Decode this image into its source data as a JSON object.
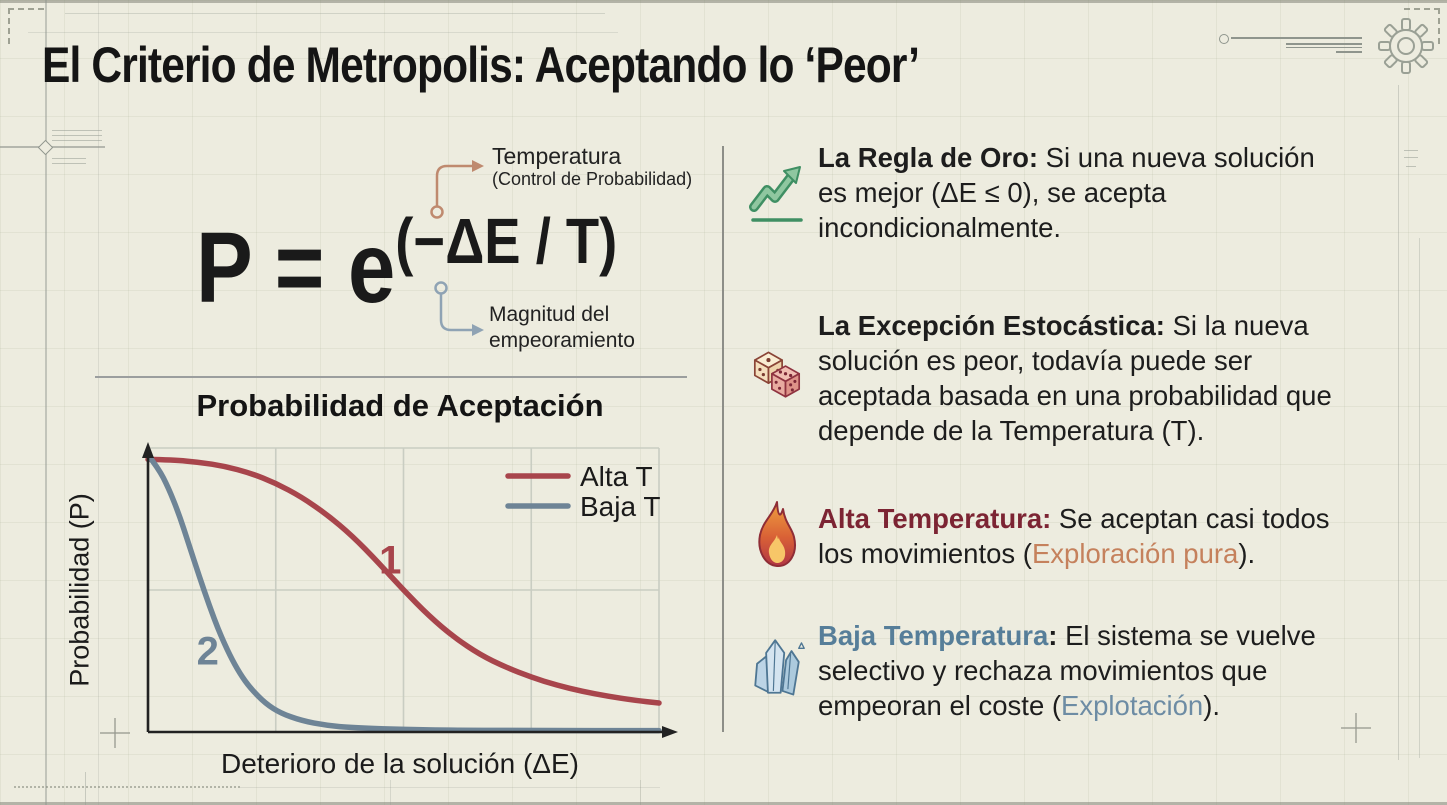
{
  "page": {
    "title": "El Criterio de Metropolis: Aceptando lo ‘Peor’"
  },
  "formula": {
    "base": "P = e",
    "exponent": "(−ΔE / T)",
    "temperature_note": {
      "title": "Temperatura",
      "subtitle": "(Control de Probabilidad)",
      "arrow_color": "#bf8a6f"
    },
    "magnitude_note": {
      "line1": "Magnitud del",
      "line2": "empeoramiento",
      "arrow_color": "#8fa3b4"
    }
  },
  "chart_data": {
    "type": "line",
    "title": "Probabilidad de Aceptación",
    "xlabel": "Deterioro de la solución (ΔE)",
    "ylabel": "Probabilidad (P)",
    "xlim": [
      0,
      1
    ],
    "ylim": [
      0,
      1
    ],
    "grid": true,
    "legend_position": "top-right",
    "series": [
      {
        "name": "Alta T",
        "color": "#a8454c",
        "annotation": "1",
        "annotation_pos": [
          0.474,
          0.6
        ],
        "x": [
          0,
          0.05,
          0.1,
          0.15,
          0.2,
          0.25,
          0.3,
          0.35,
          0.4,
          0.45,
          0.5,
          0.55,
          0.6,
          0.65,
          0.7,
          0.75,
          0.8,
          0.85,
          0.9,
          0.95,
          1.0
        ],
        "y": [
          0.96,
          0.958,
          0.95,
          0.936,
          0.912,
          0.876,
          0.828,
          0.766,
          0.69,
          0.598,
          0.5,
          0.408,
          0.332,
          0.272,
          0.228,
          0.193,
          0.165,
          0.143,
          0.126,
          0.112,
          0.102
        ]
      },
      {
        "name": "Baja T",
        "color": "#6e8496",
        "annotation": "2",
        "annotation_pos": [
          0.117,
          0.28
        ],
        "x": [
          0,
          0.02,
          0.04,
          0.06,
          0.08,
          0.1,
          0.12,
          0.14,
          0.16,
          0.18,
          0.2,
          0.23,
          0.26,
          0.3,
          0.35,
          0.4,
          0.5,
          0.6,
          0.75,
          1.0
        ],
        "y": [
          0.975,
          0.93,
          0.86,
          0.77,
          0.66,
          0.55,
          0.445,
          0.35,
          0.27,
          0.205,
          0.155,
          0.1,
          0.066,
          0.04,
          0.023,
          0.015,
          0.009,
          0.006,
          0.005,
          0.005
        ]
      }
    ]
  },
  "rules": [
    {
      "icon": "trend-up-icon",
      "lines": [
        [
          {
            "t": "La Regla de Oro:",
            "b": true
          },
          {
            "t": " Si una nueva solución"
          }
        ],
        [
          {
            "t": "es mejor (ΔE ≤ 0), se acepta"
          }
        ],
        [
          {
            "t": "incondicionalmente."
          }
        ]
      ]
    },
    {
      "icon": "dice-icon",
      "lines": [
        [
          {
            "t": "La Excepción Estocástica:",
            "b": true
          },
          {
            "t": " Si la nueva"
          }
        ],
        [
          {
            "t": "solución es peor, todavía puede ser"
          }
        ],
        [
          {
            "t": "aceptada basada en una probabilidad que"
          }
        ],
        [
          {
            "t": "depende de la Temperatura (T)."
          }
        ]
      ]
    },
    {
      "icon": "flame-icon",
      "lines": [
        [
          {
            "t": "Alta Temperatura:",
            "b": true,
            "c": "#7c2433"
          },
          {
            "t": " Se aceptan casi todos"
          }
        ],
        [
          {
            "t": "los movimientos ("
          },
          {
            "t": "Exploración pura",
            "c": "#c5815c"
          },
          {
            "t": ")."
          }
        ]
      ]
    },
    {
      "icon": "crystals-icon",
      "lines": [
        [
          {
            "t": "Baja Temperatura",
            "b": true,
            "c": "#567e99"
          },
          {
            "t": ":",
            "b": true
          },
          {
            "t": " El sistema se vuelve"
          }
        ],
        [
          {
            "t": "selectivo y rechaza movimientos que"
          }
        ],
        [
          {
            "t": "empeoran el coste ("
          },
          {
            "t": "Explotación",
            "c": "#6d8ca4"
          },
          {
            "t": ")."
          }
        ]
      ]
    }
  ]
}
